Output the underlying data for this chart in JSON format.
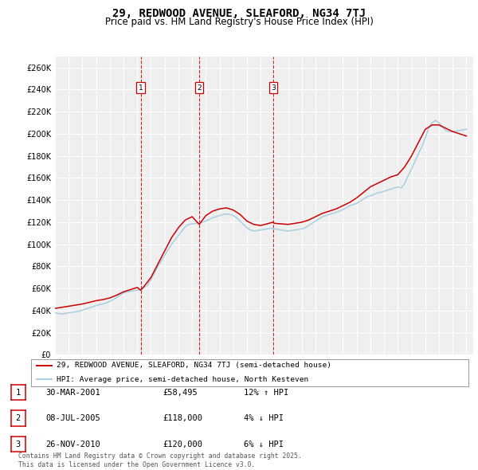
{
  "title": "29, REDWOOD AVENUE, SLEAFORD, NG34 7TJ",
  "subtitle": "Price paid vs. HM Land Registry's House Price Index (HPI)",
  "title_fontsize": 10,
  "subtitle_fontsize": 8.5,
  "ylim": [
    0,
    270000
  ],
  "yticks": [
    0,
    20000,
    40000,
    60000,
    80000,
    100000,
    120000,
    140000,
    160000,
    180000,
    200000,
    220000,
    240000,
    260000
  ],
  "ytick_labels": [
    "£0",
    "£20K",
    "£40K",
    "£60K",
    "£80K",
    "£100K",
    "£120K",
    "£140K",
    "£160K",
    "£180K",
    "£200K",
    "£220K",
    "£240K",
    "£260K"
  ],
  "xlim_start": 1995.0,
  "xlim_end": 2025.5,
  "background_color": "#ffffff",
  "plot_bg_color": "#efefef",
  "grid_color": "#ffffff",
  "hpi_color": "#a8cfe0",
  "price_color": "#cc0000",
  "sale_line_color": "#cc0000",
  "sale_marker_color": "#cc0000",
  "sales": [
    {
      "num": 1,
      "year": 2001.25,
      "price": 58495,
      "date": "30-MAR-2001",
      "hpi_pct": "12% ↑ HPI"
    },
    {
      "num": 2,
      "year": 2005.52,
      "price": 118000,
      "date": "08-JUL-2005",
      "hpi_pct": "4% ↓ HPI"
    },
    {
      "num": 3,
      "year": 2010.9,
      "price": 120000,
      "date": "26-NOV-2010",
      "hpi_pct": "6% ↓ HPI"
    }
  ],
  "legend_label_red": "29, REDWOOD AVENUE, SLEAFORD, NG34 7TJ (semi-detached house)",
  "legend_label_blue": "HPI: Average price, semi-detached house, North Kesteven",
  "footnote": "Contains HM Land Registry data © Crown copyright and database right 2025.\nThis data is licensed under the Open Government Licence v3.0.",
  "hpi_data_x": [
    1995.0,
    1995.25,
    1995.5,
    1995.75,
    1996.0,
    1996.25,
    1996.5,
    1996.75,
    1997.0,
    1997.25,
    1997.5,
    1997.75,
    1998.0,
    1998.25,
    1998.5,
    1998.75,
    1999.0,
    1999.25,
    1999.5,
    1999.75,
    2000.0,
    2000.25,
    2000.5,
    2000.75,
    2001.0,
    2001.25,
    2001.5,
    2001.75,
    2002.0,
    2002.25,
    2002.5,
    2002.75,
    2003.0,
    2003.25,
    2003.5,
    2003.75,
    2004.0,
    2004.25,
    2004.5,
    2004.75,
    2005.0,
    2005.25,
    2005.5,
    2005.75,
    2006.0,
    2006.25,
    2006.5,
    2006.75,
    2007.0,
    2007.25,
    2007.5,
    2007.75,
    2008.0,
    2008.25,
    2008.5,
    2008.75,
    2009.0,
    2009.25,
    2009.5,
    2009.75,
    2010.0,
    2010.25,
    2010.5,
    2010.75,
    2011.0,
    2011.25,
    2011.5,
    2011.75,
    2012.0,
    2012.25,
    2012.5,
    2012.75,
    2013.0,
    2013.25,
    2013.5,
    2013.75,
    2014.0,
    2014.25,
    2014.5,
    2014.75,
    2015.0,
    2015.25,
    2015.5,
    2015.75,
    2016.0,
    2016.25,
    2016.5,
    2016.75,
    2017.0,
    2017.25,
    2017.5,
    2017.75,
    2018.0,
    2018.25,
    2018.5,
    2018.75,
    2019.0,
    2019.25,
    2019.5,
    2019.75,
    2020.0,
    2020.25,
    2020.5,
    2020.75,
    2021.0,
    2021.25,
    2021.5,
    2021.75,
    2022.0,
    2022.25,
    2022.5,
    2022.75,
    2023.0,
    2023.25,
    2023.5,
    2023.75,
    2024.0,
    2024.25,
    2024.5,
    2024.75,
    2025.0
  ],
  "hpi_data_y": [
    38000,
    37500,
    37000,
    37500,
    38000,
    38500,
    39000,
    39500,
    40500,
    41500,
    42500,
    43500,
    44500,
    45500,
    46000,
    47000,
    48500,
    50000,
    52000,
    54000,
    56000,
    57000,
    57500,
    58000,
    58500,
    59000,
    61000,
    63000,
    68000,
    74000,
    80000,
    85000,
    90000,
    95000,
    100000,
    104000,
    108000,
    112000,
    116000,
    118000,
    118500,
    119000,
    119500,
    120000,
    121000,
    122500,
    124000,
    125000,
    126000,
    127000,
    127500,
    127000,
    126000,
    124000,
    121000,
    118000,
    115000,
    113000,
    112000,
    112500,
    113000,
    113500,
    114000,
    114500,
    114000,
    113500,
    113000,
    112500,
    112000,
    112500,
    113000,
    113500,
    114000,
    115000,
    117000,
    119000,
    121000,
    123000,
    125000,
    126000,
    127000,
    128000,
    129000,
    130000,
    131500,
    133000,
    135000,
    136000,
    137000,
    139000,
    141000,
    143000,
    144000,
    145000,
    146500,
    147000,
    148000,
    149000,
    150000,
    151000,
    152000,
    151000,
    155000,
    162000,
    168000,
    175000,
    182000,
    188000,
    196000,
    205000,
    210000,
    212000,
    210000,
    206000,
    203000,
    202000,
    202000,
    202500,
    203000,
    203500,
    204000
  ],
  "price_data_x": [
    1995.0,
    1995.5,
    1996.0,
    1996.5,
    1997.0,
    1997.5,
    1998.0,
    1998.5,
    1999.0,
    1999.5,
    2000.0,
    2000.5,
    2001.0,
    2001.25,
    2001.5,
    2002.0,
    2002.5,
    2003.0,
    2003.5,
    2004.0,
    2004.5,
    2005.0,
    2005.52,
    2006.0,
    2006.5,
    2007.0,
    2007.5,
    2008.0,
    2008.5,
    2009.0,
    2009.5,
    2010.0,
    2010.9,
    2011.0,
    2011.5,
    2012.0,
    2012.5,
    2013.0,
    2013.5,
    2014.0,
    2014.5,
    2015.0,
    2015.5,
    2016.0,
    2016.5,
    2017.0,
    2017.5,
    2018.0,
    2018.5,
    2019.0,
    2019.5,
    2020.0,
    2020.5,
    2021.0,
    2021.5,
    2022.0,
    2022.5,
    2023.0,
    2023.5,
    2024.0,
    2024.5,
    2025.0
  ],
  "price_data_y": [
    42000,
    43000,
    44000,
    45000,
    46000,
    47500,
    49000,
    50000,
    51500,
    54000,
    57000,
    59000,
    61000,
    58495,
    62000,
    70000,
    82000,
    94000,
    106000,
    115000,
    122000,
    125000,
    118000,
    126000,
    130000,
    132000,
    133000,
    131000,
    127000,
    121000,
    118000,
    117000,
    120000,
    119000,
    118500,
    118000,
    119000,
    120000,
    122000,
    125000,
    128000,
    130000,
    132000,
    135000,
    138000,
    142000,
    147000,
    152000,
    155000,
    158000,
    161000,
    163000,
    170000,
    180000,
    192000,
    204000,
    208000,
    208000,
    205000,
    202000,
    200000,
    198000
  ]
}
